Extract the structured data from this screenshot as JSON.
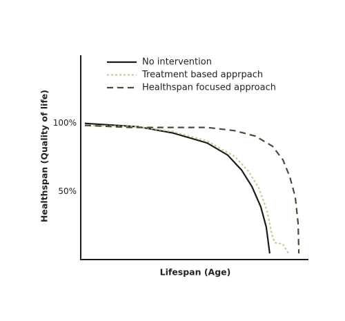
{
  "chart_data": {
    "type": "line",
    "x_label": "Lifespan (Age)",
    "y_label": "Healthspan (Quality of life)",
    "xlim": [
      0,
      100
    ],
    "ylim": [
      0,
      150
    ],
    "yticks": [
      {
        "value": 50,
        "label": "50%"
      },
      {
        "value": 100,
        "label": "100%"
      }
    ],
    "legend": "top-left",
    "series": [
      {
        "name": "No intervention",
        "color": "#1a1a1a",
        "style": "solid",
        "x": [
          1.8,
          25.2,
          40.3,
          55.5,
          64.5,
          70.6,
          75.2,
          79.1,
          81.5,
          83
        ],
        "values": [
          100,
          97.5,
          93,
          85.6,
          76.7,
          65.8,
          53.5,
          38.6,
          23.8,
          4.5
        ]
      },
      {
        "name": "Treatment based apprpach",
        "color": "#c9c98f",
        "style": "dotted",
        "x": [
          1.8,
          25.2,
          40.3,
          55.5,
          67.6,
          73.6,
          78.2,
          81.8,
          83.9,
          85.2,
          88.8,
          91.2
        ],
        "values": [
          98.5,
          97.5,
          94,
          87,
          75.7,
          64.9,
          52.5,
          36,
          18.8,
          12.4,
          11.4,
          4.5
        ]
      },
      {
        "name": "Healthspan focused approach",
        "color": "#4a4a30",
        "style": "dashed",
        "x": [
          1.8,
          22.1,
          55.5,
          67.6,
          76.7,
          84.2,
          88.8,
          91.8,
          94.2,
          95.5,
          95.8
        ],
        "values": [
          98.5,
          97,
          97,
          94.6,
          90.6,
          83.2,
          73.3,
          60.9,
          46,
          26.2,
          4.5
        ]
      }
    ]
  }
}
